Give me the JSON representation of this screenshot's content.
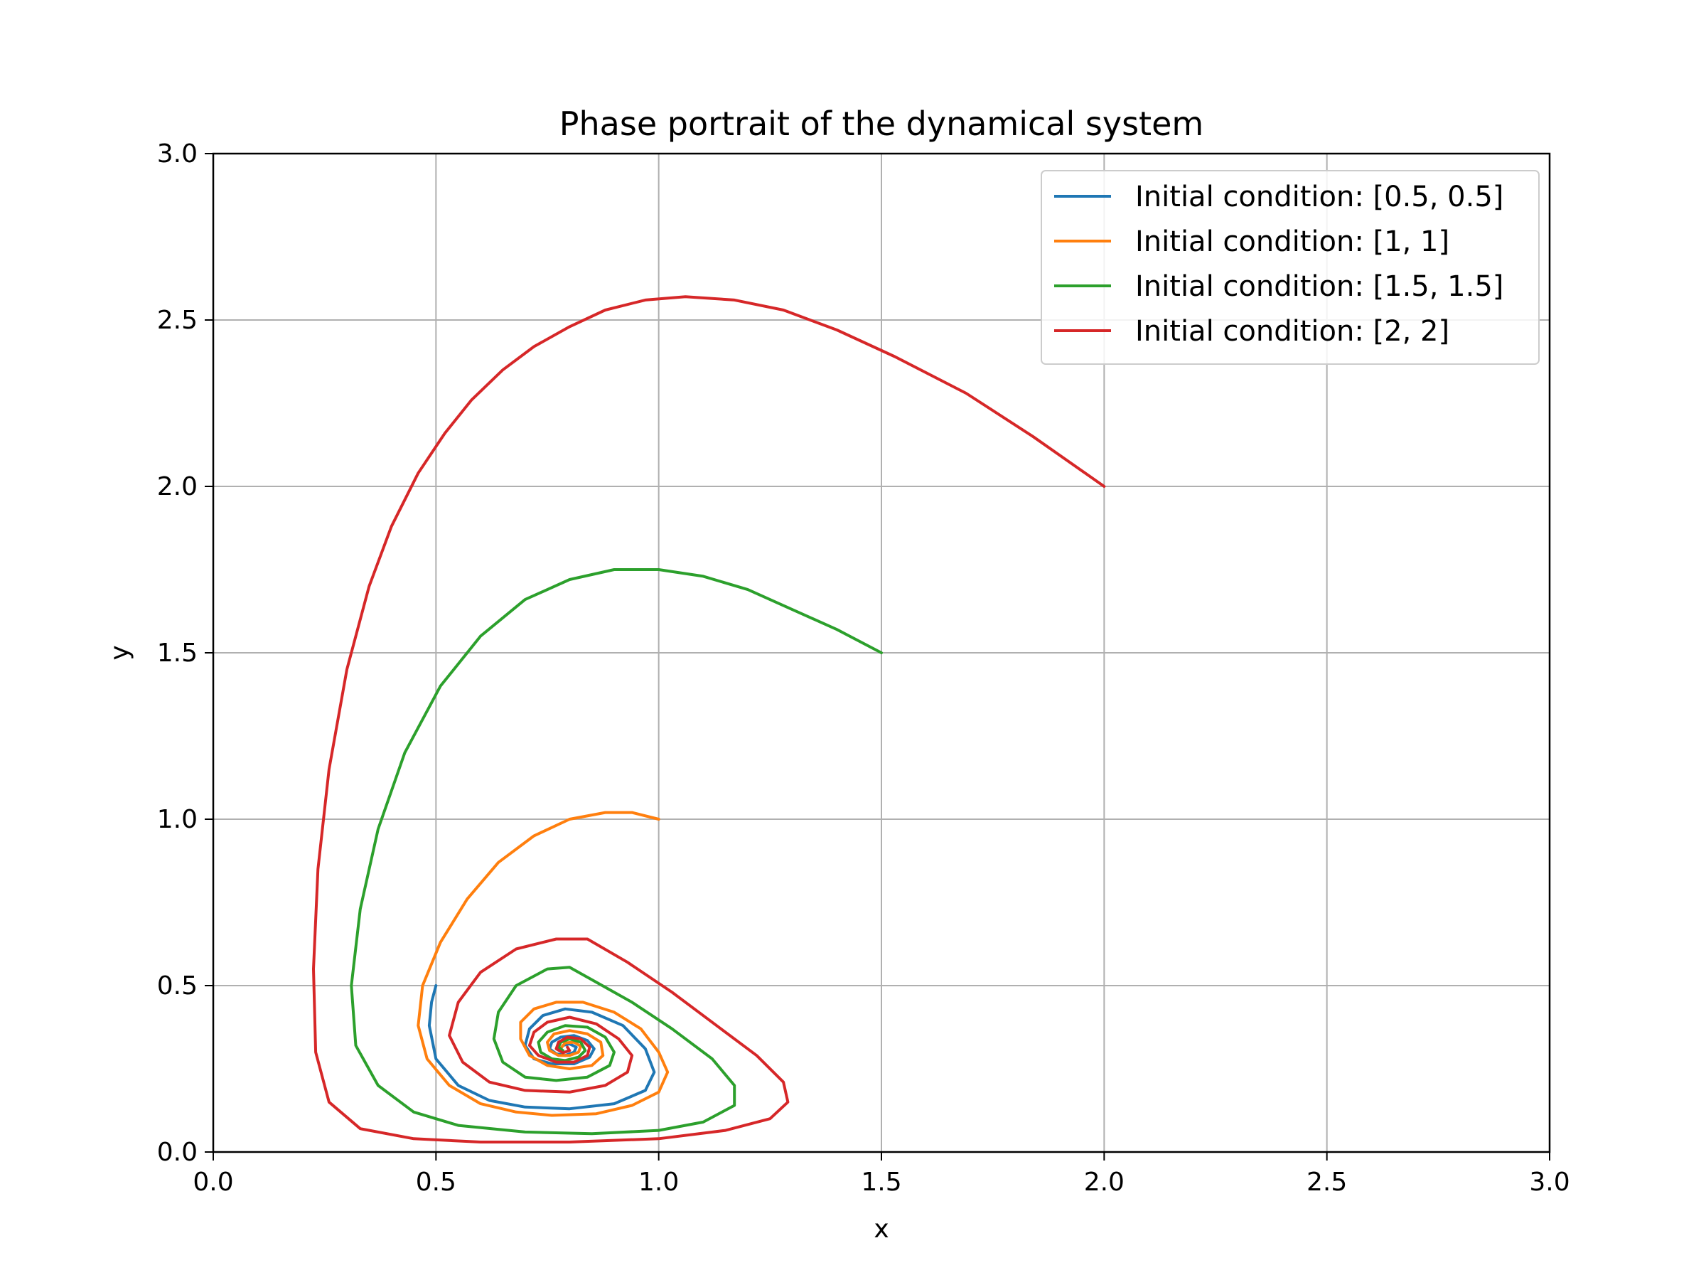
{
  "chart_data": {
    "type": "line",
    "title": "Phase portrait of the dynamical system",
    "xlabel": "x",
    "ylabel": "y",
    "xlim": [
      0,
      3
    ],
    "ylim": [
      0,
      3
    ],
    "xticks": [
      0.0,
      0.5,
      1.0,
      1.5,
      2.0,
      2.5,
      3.0
    ],
    "yticks": [
      0.0,
      0.5,
      1.0,
      1.5,
      2.0,
      2.5,
      3.0
    ],
    "xtick_labels": [
      "0.0",
      "0.5",
      "1.0",
      "1.5",
      "2.0",
      "2.5",
      "3.0"
    ],
    "ytick_labels": [
      "0.0",
      "0.5",
      "1.0",
      "1.5",
      "2.0",
      "2.5",
      "3.0"
    ],
    "grid": true,
    "legend_position": "top-right",
    "series": [
      {
        "name": "Initial condition: [0.5, 0.5]",
        "color": "#1f77b4",
        "points": [
          [
            0.5,
            0.5
          ],
          [
            0.49,
            0.45
          ],
          [
            0.485,
            0.38
          ],
          [
            0.5,
            0.28
          ],
          [
            0.55,
            0.2
          ],
          [
            0.62,
            0.155
          ],
          [
            0.7,
            0.135
          ],
          [
            0.8,
            0.13
          ],
          [
            0.9,
            0.145
          ],
          [
            0.97,
            0.185
          ],
          [
            0.99,
            0.24
          ],
          [
            0.97,
            0.31
          ],
          [
            0.92,
            0.38
          ],
          [
            0.85,
            0.42
          ],
          [
            0.79,
            0.43
          ],
          [
            0.74,
            0.41
          ],
          [
            0.71,
            0.37
          ],
          [
            0.7,
            0.32
          ],
          [
            0.72,
            0.28
          ],
          [
            0.76,
            0.265
          ],
          [
            0.81,
            0.265
          ],
          [
            0.845,
            0.285
          ],
          [
            0.855,
            0.31
          ],
          [
            0.84,
            0.335
          ],
          [
            0.81,
            0.35
          ],
          [
            0.78,
            0.345
          ],
          [
            0.76,
            0.33
          ],
          [
            0.755,
            0.31
          ],
          [
            0.77,
            0.295
          ],
          [
            0.79,
            0.29
          ],
          [
            0.81,
            0.3
          ],
          [
            0.815,
            0.315
          ],
          [
            0.8,
            0.325
          ],
          [
            0.785,
            0.32
          ],
          [
            0.78,
            0.31
          ]
        ]
      },
      {
        "name": "Initial condition: [1, 1]",
        "color": "#ff7f0e",
        "points": [
          [
            1.0,
            1.0
          ],
          [
            0.94,
            1.02
          ],
          [
            0.88,
            1.02
          ],
          [
            0.8,
            1.0
          ],
          [
            0.72,
            0.95
          ],
          [
            0.64,
            0.87
          ],
          [
            0.57,
            0.76
          ],
          [
            0.51,
            0.63
          ],
          [
            0.47,
            0.5
          ],
          [
            0.46,
            0.38
          ],
          [
            0.48,
            0.28
          ],
          [
            0.53,
            0.2
          ],
          [
            0.6,
            0.145
          ],
          [
            0.68,
            0.12
          ],
          [
            0.76,
            0.11
          ],
          [
            0.86,
            0.115
          ],
          [
            0.94,
            0.14
          ],
          [
            1.0,
            0.18
          ],
          [
            1.02,
            0.24
          ],
          [
            1.0,
            0.3
          ],
          [
            0.96,
            0.37
          ],
          [
            0.9,
            0.42
          ],
          [
            0.83,
            0.45
          ],
          [
            0.77,
            0.45
          ],
          [
            0.72,
            0.43
          ],
          [
            0.69,
            0.39
          ],
          [
            0.69,
            0.34
          ],
          [
            0.71,
            0.29
          ],
          [
            0.75,
            0.26
          ],
          [
            0.8,
            0.25
          ],
          [
            0.85,
            0.26
          ],
          [
            0.875,
            0.29
          ],
          [
            0.87,
            0.33
          ],
          [
            0.84,
            0.355
          ],
          [
            0.8,
            0.365
          ],
          [
            0.765,
            0.355
          ],
          [
            0.75,
            0.33
          ],
          [
            0.755,
            0.305
          ],
          [
            0.775,
            0.29
          ],
          [
            0.8,
            0.29
          ],
          [
            0.82,
            0.3
          ],
          [
            0.825,
            0.318
          ],
          [
            0.81,
            0.33
          ],
          [
            0.79,
            0.328
          ],
          [
            0.782,
            0.315
          ]
        ]
      },
      {
        "name": "Initial condition: [1.5, 1.5]",
        "color": "#2ca02c",
        "points": [
          [
            1.5,
            1.5
          ],
          [
            1.4,
            1.57
          ],
          [
            1.3,
            1.63
          ],
          [
            1.2,
            1.69
          ],
          [
            1.1,
            1.73
          ],
          [
            1.0,
            1.75
          ],
          [
            0.9,
            1.75
          ],
          [
            0.8,
            1.72
          ],
          [
            0.7,
            1.66
          ],
          [
            0.6,
            1.55
          ],
          [
            0.51,
            1.4
          ],
          [
            0.43,
            1.2
          ],
          [
            0.37,
            0.97
          ],
          [
            0.33,
            0.73
          ],
          [
            0.31,
            0.5
          ],
          [
            0.32,
            0.32
          ],
          [
            0.37,
            0.2
          ],
          [
            0.45,
            0.12
          ],
          [
            0.55,
            0.08
          ],
          [
            0.7,
            0.06
          ],
          [
            0.85,
            0.055
          ],
          [
            1.0,
            0.065
          ],
          [
            1.1,
            0.09
          ],
          [
            1.17,
            0.14
          ],
          [
            1.17,
            0.2
          ],
          [
            1.12,
            0.28
          ],
          [
            1.03,
            0.37
          ],
          [
            0.94,
            0.45
          ],
          [
            0.86,
            0.51
          ],
          [
            0.8,
            0.555
          ],
          [
            0.75,
            0.55
          ],
          [
            0.68,
            0.5
          ],
          [
            0.64,
            0.42
          ],
          [
            0.63,
            0.34
          ],
          [
            0.65,
            0.27
          ],
          [
            0.7,
            0.225
          ],
          [
            0.77,
            0.215
          ],
          [
            0.84,
            0.225
          ],
          [
            0.89,
            0.26
          ],
          [
            0.9,
            0.3
          ],
          [
            0.88,
            0.345
          ],
          [
            0.84,
            0.375
          ],
          [
            0.79,
            0.38
          ],
          [
            0.75,
            0.36
          ],
          [
            0.73,
            0.33
          ],
          [
            0.735,
            0.3
          ],
          [
            0.76,
            0.28
          ],
          [
            0.79,
            0.275
          ],
          [
            0.82,
            0.285
          ],
          [
            0.835,
            0.305
          ],
          [
            0.825,
            0.33
          ],
          [
            0.8,
            0.34
          ],
          [
            0.78,
            0.33
          ],
          [
            0.775,
            0.315
          ],
          [
            0.785,
            0.305
          ]
        ]
      },
      {
        "name": "Initial condition: [2, 2]",
        "color": "#d62728",
        "points": [
          [
            2.0,
            2.0
          ],
          [
            1.84,
            2.15
          ],
          [
            1.69,
            2.28
          ],
          [
            1.53,
            2.39
          ],
          [
            1.4,
            2.47
          ],
          [
            1.28,
            2.53
          ],
          [
            1.17,
            2.56
          ],
          [
            1.06,
            2.57
          ],
          [
            0.97,
            2.56
          ],
          [
            0.88,
            2.53
          ],
          [
            0.8,
            2.48
          ],
          [
            0.72,
            2.42
          ],
          [
            0.65,
            2.35
          ],
          [
            0.58,
            2.26
          ],
          [
            0.52,
            2.16
          ],
          [
            0.46,
            2.04
          ],
          [
            0.4,
            1.88
          ],
          [
            0.35,
            1.7
          ],
          [
            0.3,
            1.45
          ],
          [
            0.26,
            1.15
          ],
          [
            0.235,
            0.85
          ],
          [
            0.225,
            0.55
          ],
          [
            0.23,
            0.3
          ],
          [
            0.26,
            0.15
          ],
          [
            0.33,
            0.07
          ],
          [
            0.45,
            0.04
          ],
          [
            0.6,
            0.03
          ],
          [
            0.8,
            0.03
          ],
          [
            1.0,
            0.04
          ],
          [
            1.15,
            0.065
          ],
          [
            1.25,
            0.1
          ],
          [
            1.29,
            0.15
          ],
          [
            1.28,
            0.21
          ],
          [
            1.22,
            0.29
          ],
          [
            1.13,
            0.38
          ],
          [
            1.03,
            0.48
          ],
          [
            0.93,
            0.57
          ],
          [
            0.84,
            0.64
          ],
          [
            0.77,
            0.64
          ],
          [
            0.68,
            0.61
          ],
          [
            0.6,
            0.54
          ],
          [
            0.55,
            0.45
          ],
          [
            0.53,
            0.35
          ],
          [
            0.56,
            0.27
          ],
          [
            0.62,
            0.21
          ],
          [
            0.7,
            0.185
          ],
          [
            0.8,
            0.18
          ],
          [
            0.88,
            0.2
          ],
          [
            0.93,
            0.24
          ],
          [
            0.94,
            0.29
          ],
          [
            0.91,
            0.34
          ],
          [
            0.86,
            0.385
          ],
          [
            0.8,
            0.405
          ],
          [
            0.75,
            0.39
          ],
          [
            0.72,
            0.36
          ],
          [
            0.71,
            0.32
          ],
          [
            0.73,
            0.29
          ],
          [
            0.77,
            0.27
          ],
          [
            0.81,
            0.27
          ],
          [
            0.84,
            0.29
          ],
          [
            0.845,
            0.315
          ],
          [
            0.825,
            0.34
          ],
          [
            0.795,
            0.345
          ],
          [
            0.775,
            0.33
          ],
          [
            0.77,
            0.31
          ],
          [
            0.785,
            0.298
          ],
          [
            0.8,
            0.305
          ],
          [
            0.795,
            0.315
          ]
        ]
      }
    ]
  }
}
